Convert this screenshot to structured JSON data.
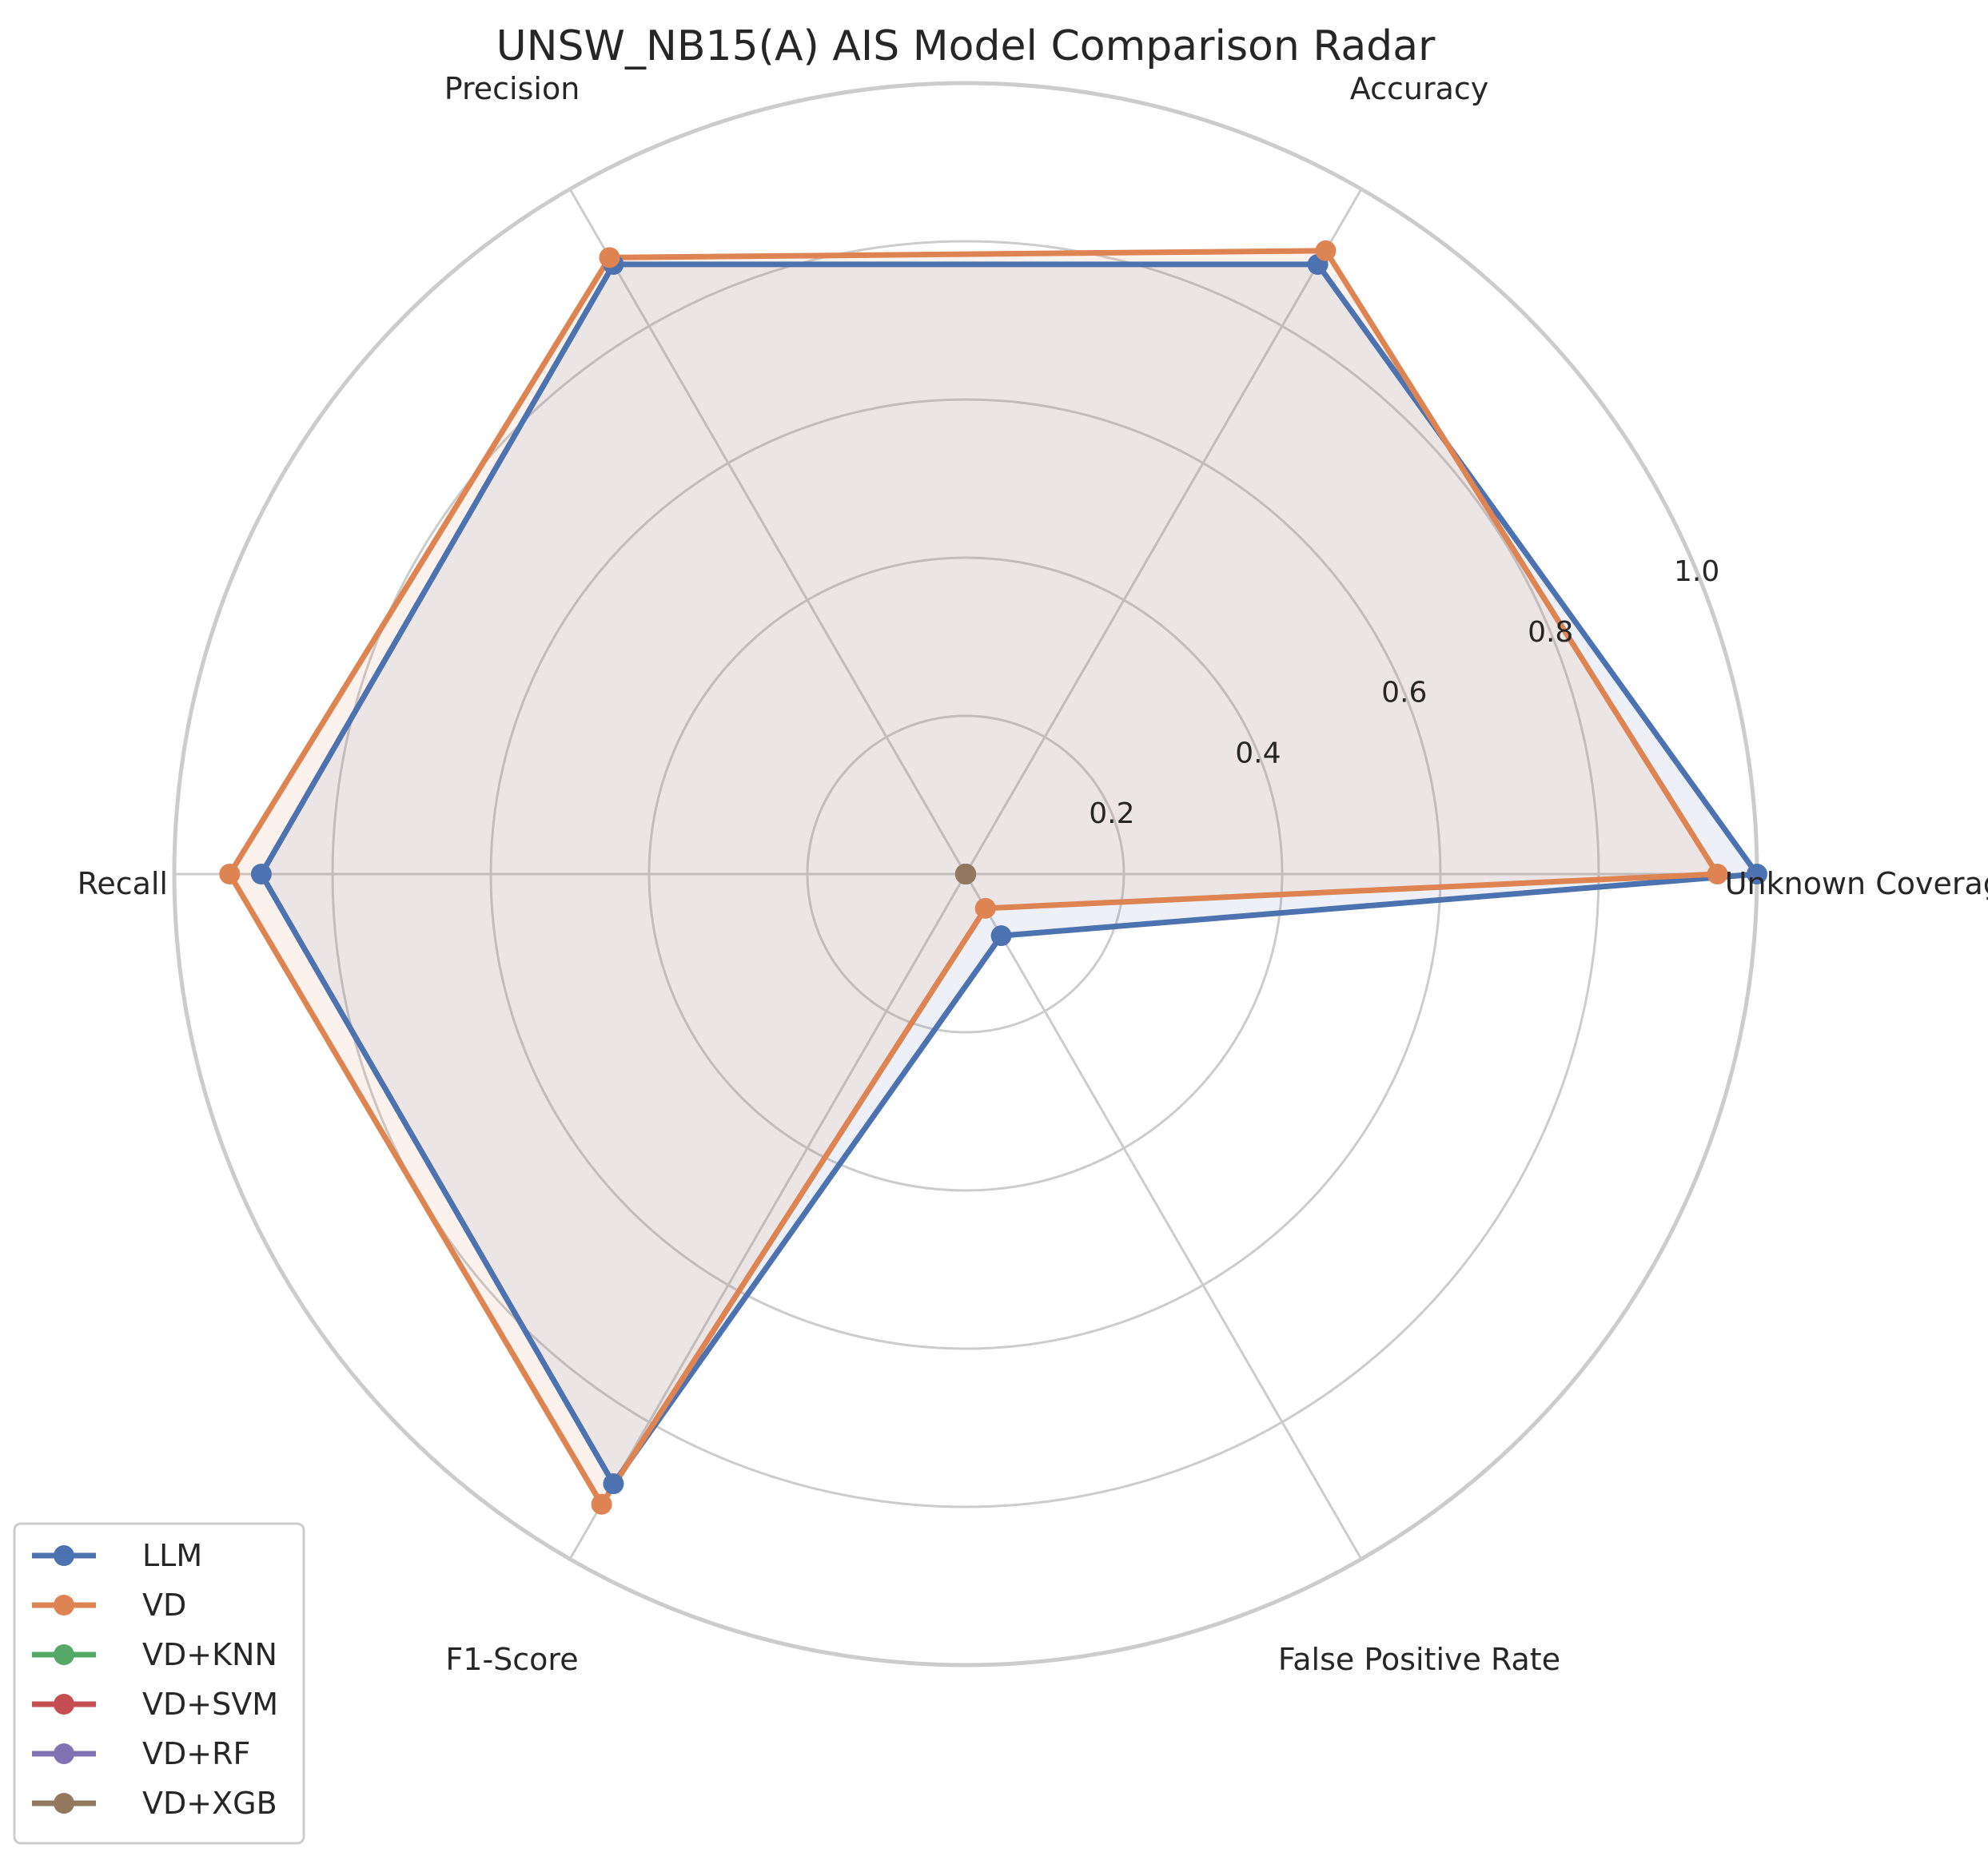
{
  "chart_data": {
    "type": "radar",
    "title": "UNSW_NB15(A) AIS Model Comparison Radar",
    "axes": [
      "Unknown Coverage",
      "Accuracy",
      "Precision",
      "Recall",
      "F1-Score",
      "False Positive Rate"
    ],
    "rlim": [
      0,
      1.0
    ],
    "rticks": [
      0.2,
      0.4,
      0.6,
      0.8,
      1.0
    ],
    "rtick_labels": [
      "0.2",
      "0.4",
      "0.6",
      "0.8",
      "1.0"
    ],
    "grid": true,
    "legend_position": "lower-left",
    "series": [
      {
        "name": "LLM",
        "color": "#4c72b0",
        "values": [
          1.0,
          0.89,
          0.89,
          0.89,
          0.89,
          0.09
        ]
      },
      {
        "name": "VD",
        "color": "#dd8452",
        "values": [
          0.95,
          0.91,
          0.9,
          0.93,
          0.92,
          0.05
        ]
      },
      {
        "name": "VD+KNN",
        "color": "#55a868",
        "values": [
          0,
          0,
          0,
          0,
          0,
          0
        ]
      },
      {
        "name": "VD+SVM",
        "color": "#c44e52",
        "values": [
          0,
          0,
          0,
          0,
          0,
          0
        ]
      },
      {
        "name": "VD+RF",
        "color": "#8172b3",
        "values": [
          0,
          0,
          0,
          0,
          0,
          0
        ]
      },
      {
        "name": "VD+XGB",
        "color": "#937860",
        "values": [
          0,
          0,
          0,
          0,
          0,
          0
        ]
      }
    ]
  }
}
